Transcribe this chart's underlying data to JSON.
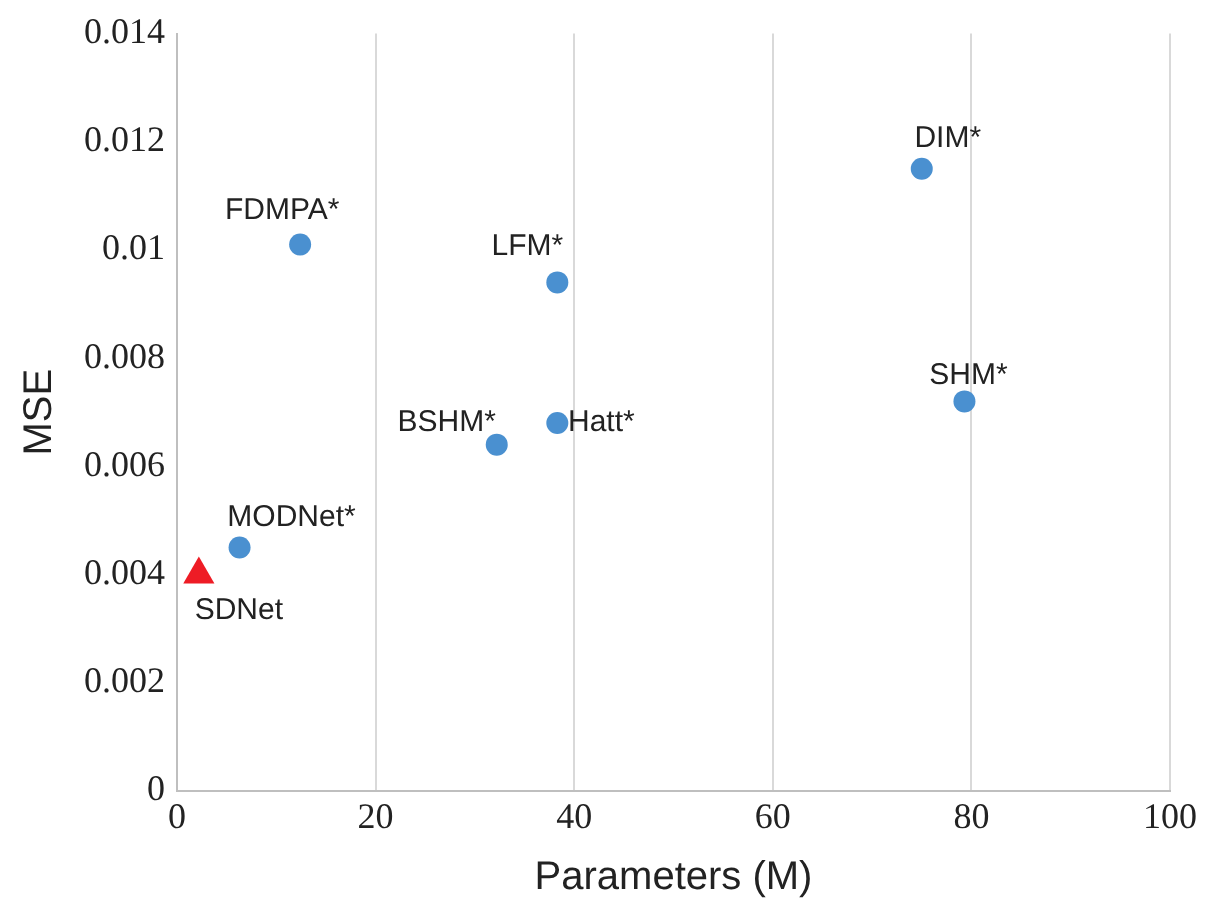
{
  "chart_data": {
    "type": "scatter",
    "xlabel": "Parameters (M)",
    "ylabel": "MSE",
    "series": [
      {
        "color": "#4a90d0",
        "marker": "circle",
        "x": [
          6.3,
          12.4,
          38.3,
          75,
          79.3,
          38.3,
          32.2
        ],
        "values": [
          0.0045,
          0.0101,
          0.0094,
          0.0115,
          0.0072,
          0.0068,
          0.0064
        ]
      },
      {
        "color": "#ee1c25",
        "marker": "triangle",
        "x": [
          2.2
        ],
        "values": [
          0.004
        ]
      }
    ],
    "annotations": [
      {
        "text": "SDNet",
        "x": 2.2,
        "y": 0.004
      },
      {
        "text": "MODNet*",
        "x": 6.3,
        "y": 0.0045
      },
      {
        "text": "FDMPA*",
        "x": 12.4,
        "y": 0.0101
      },
      {
        "text": "LFM*",
        "x": 38.3,
        "y": 0.0094
      },
      {
        "text": "DIM*",
        "x": 75,
        "y": 0.0115
      },
      {
        "text": "SHM*",
        "x": 79.3,
        "y": 0.0072
      },
      {
        "text": "Hatt*",
        "x": 38.3,
        "y": 0.0068
      },
      {
        "text": "BSHM*",
        "x": 32.2,
        "y": 0.0064
      }
    ],
    "xlim": [
      0,
      100
    ],
    "xticks": [
      0,
      20,
      40,
      60,
      80,
      100
    ],
    "ylim": [
      0,
      0.014
    ],
    "yticks": [
      0,
      0.002,
      0.004,
      0.006,
      0.008,
      0.01,
      0.012,
      0.014
    ],
    "grid": "x",
    "legend": false
  }
}
